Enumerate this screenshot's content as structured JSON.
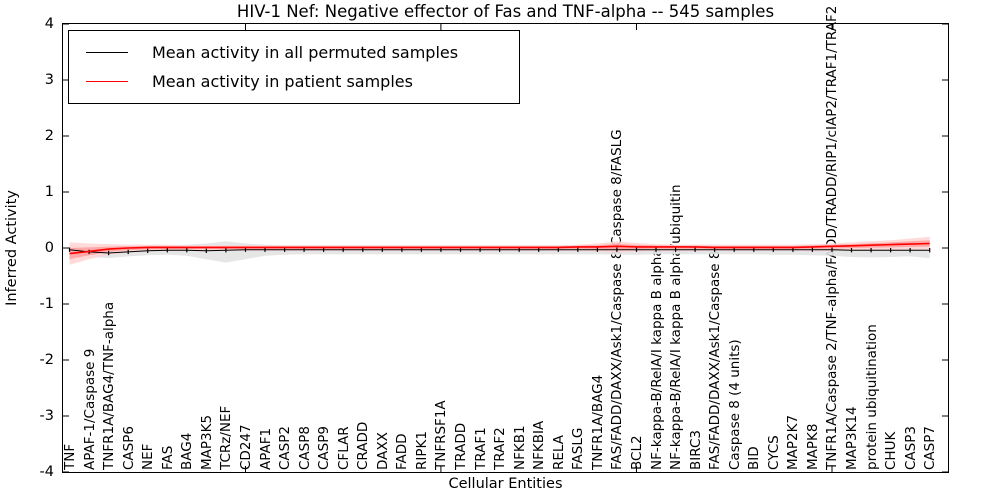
{
  "chart_data": {
    "type": "line",
    "title": "HIV-1 Nef: Negative effector of Fas and TNF-alpha -- 545 samples",
    "xlabel": "Cellular Entities",
    "ylabel": "Inferred Activity",
    "ylim": [
      -4,
      4
    ],
    "yticks": [
      4,
      3,
      2,
      1,
      0,
      -1,
      -2,
      -3,
      -4
    ],
    "x_major_tick_values": [
      10,
      20,
      30,
      40
    ],
    "legend_position": "upper left",
    "grid": false,
    "categories": [
      "TNF",
      "APAF-1/Caspase 9",
      "TNFR1A/BAG4/TNF-alpha",
      "CASP6",
      "NEF",
      "FAS",
      "BAG4",
      "MAP3K5",
      "TCRz/NEF",
      "CD247",
      "APAF1",
      "CASP2",
      "CASP8",
      "CASP9",
      "CFLAR",
      "CRADD",
      "DAXX",
      "FADD",
      "RIPK1",
      "TNFRSF1A",
      "TRADD",
      "TRAF1",
      "TRAF2",
      "NFKB1",
      "NFKBIA",
      "RELA",
      "FASLG",
      "TNFR1A/BAG4",
      "FAS/FADD/DAXX/Ask1/Caspase 8/Caspase 8/FASLG",
      "BCL2",
      "NF-kappa-B/RelA/I kappa B alpha",
      "NF-kappa-B/RelA/I kappa B alpha/ubiquitin",
      "BIRC3",
      "FAS/FADD/DAXX/Ask1/Caspase 8",
      "Caspase 8 (4 units)",
      "BID",
      "CYCS",
      "MAP2K7",
      "MAPK8",
      "TNFR1A/Caspase 2/TNF-alpha/FADD/TRADD/RIP1/cIAP2/TRAF1/TRAF2",
      "MAP3K14",
      "protein ubiquitination",
      "CHUK",
      "CASP3",
      "CASP7"
    ],
    "series": [
      {
        "name": "Mean activity in all permuted samples",
        "color": "#000000",
        "band_fill": "#e3e3e3",
        "values": [
          -0.03,
          -0.07,
          -0.09,
          -0.07,
          -0.05,
          -0.04,
          -0.04,
          -0.05,
          -0.04,
          -0.03,
          -0.03,
          -0.03,
          -0.03,
          -0.03,
          -0.03,
          -0.03,
          -0.03,
          -0.03,
          -0.03,
          -0.03,
          -0.03,
          -0.03,
          -0.03,
          -0.03,
          -0.03,
          -0.03,
          -0.03,
          -0.03,
          -0.03,
          -0.03,
          -0.03,
          -0.03,
          -0.03,
          -0.03,
          -0.03,
          -0.03,
          -0.03,
          -0.03,
          -0.03,
          -0.03,
          -0.04,
          -0.04,
          -0.04,
          -0.04,
          -0.04
        ],
        "band_low": [
          -0.12,
          -0.16,
          -0.18,
          -0.15,
          -0.13,
          -0.12,
          -0.14,
          -0.2,
          -0.26,
          -0.2,
          -0.14,
          -0.12,
          -0.11,
          -0.11,
          -0.11,
          -0.11,
          -0.11,
          -0.11,
          -0.11,
          -0.11,
          -0.11,
          -0.11,
          -0.11,
          -0.11,
          -0.11,
          -0.11,
          -0.11,
          -0.11,
          -0.12,
          -0.12,
          -0.11,
          -0.11,
          -0.11,
          -0.11,
          -0.11,
          -0.11,
          -0.12,
          -0.12,
          -0.13,
          -0.14,
          -0.16,
          -0.17,
          -0.16,
          -0.15,
          -0.18
        ],
        "band_high": [
          0.05,
          0.03,
          0.01,
          0.02,
          0.04,
          0.05,
          0.06,
          0.08,
          0.12,
          0.08,
          0.06,
          0.05,
          0.05,
          0.05,
          0.05,
          0.05,
          0.05,
          0.05,
          0.05,
          0.05,
          0.05,
          0.05,
          0.05,
          0.05,
          0.05,
          0.05,
          0.05,
          0.05,
          0.05,
          0.05,
          0.05,
          0.05,
          0.05,
          0.05,
          0.05,
          0.05,
          0.05,
          0.05,
          0.05,
          0.05,
          0.05,
          0.05,
          0.05,
          0.05,
          0.05
        ]
      },
      {
        "name": "Mean activity in patient samples",
        "color": "#ff0000",
        "band_fill_outer": "#ffd4d4",
        "band_fill_inner": "#ff9b9b",
        "values": [
          -0.1,
          -0.06,
          -0.02,
          0.0,
          0.01,
          0.01,
          0.01,
          0.01,
          0.01,
          0.01,
          0.01,
          0.01,
          0.01,
          0.01,
          0.01,
          0.01,
          0.01,
          0.01,
          0.01,
          0.01,
          0.01,
          0.01,
          0.01,
          0.01,
          0.01,
          0.01,
          0.02,
          0.02,
          0.03,
          0.02,
          0.02,
          0.02,
          0.02,
          0.01,
          0.01,
          0.01,
          0.01,
          0.01,
          0.02,
          0.03,
          0.04,
          0.05,
          0.06,
          0.07,
          0.08
        ],
        "band_low": [
          -0.3,
          -0.2,
          -0.12,
          -0.08,
          -0.06,
          -0.05,
          -0.05,
          -0.05,
          -0.05,
          -0.05,
          -0.05,
          -0.05,
          -0.05,
          -0.05,
          -0.05,
          -0.05,
          -0.05,
          -0.05,
          -0.05,
          -0.05,
          -0.05,
          -0.05,
          -0.05,
          -0.05,
          -0.05,
          -0.05,
          -0.05,
          -0.06,
          -0.08,
          -0.06,
          -0.05,
          -0.05,
          -0.05,
          -0.05,
          -0.05,
          -0.05,
          -0.05,
          -0.05,
          -0.05,
          -0.05,
          -0.04,
          -0.04,
          -0.04,
          -0.03,
          -0.03
        ],
        "band_high": [
          0.1,
          0.08,
          0.07,
          0.06,
          0.06,
          0.06,
          0.05,
          0.05,
          0.05,
          0.05,
          0.05,
          0.05,
          0.05,
          0.05,
          0.05,
          0.05,
          0.05,
          0.05,
          0.05,
          0.05,
          0.05,
          0.05,
          0.05,
          0.05,
          0.05,
          0.05,
          0.06,
          0.08,
          0.12,
          0.09,
          0.07,
          0.06,
          0.06,
          0.06,
          0.06,
          0.06,
          0.06,
          0.06,
          0.07,
          0.08,
          0.1,
          0.12,
          0.14,
          0.17,
          0.2
        ]
      }
    ]
  }
}
